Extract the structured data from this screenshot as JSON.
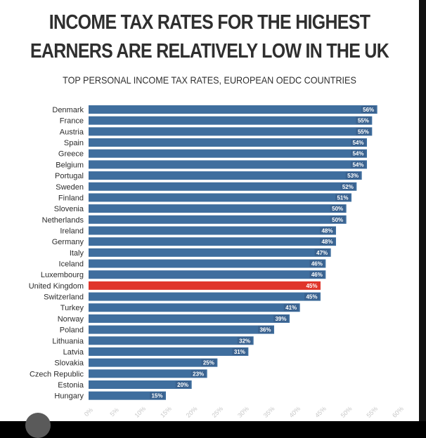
{
  "chart_data": {
    "type": "bar",
    "orientation": "horizontal",
    "title": "INCOME TAX RATES FOR THE HIGHEST EARNERS ARE RELATIVELY LOW IN THE UK",
    "subtitle": "TOP PERSONAL INCOME TAX RATES, EUROPEAN OEDC COUNTRIES",
    "categories": [
      "Denmark",
      "France",
      "Austria",
      "Spain",
      "Greece",
      "Belgium",
      "Portugal",
      "Sweden",
      "Finland",
      "Slovenia",
      "Netherlands",
      "Ireland",
      "Germany",
      "Italy",
      "Iceland",
      "Luxembourg",
      "United Kingdom",
      "Switzerland",
      "Turkey",
      "Norway",
      "Poland",
      "Lithuania",
      "Latvia",
      "Slovakia",
      "Czech Republic",
      "Estonia",
      "Hungary"
    ],
    "values": [
      56,
      55,
      55,
      54,
      54,
      54,
      53,
      52,
      51,
      50,
      50,
      48,
      48,
      47,
      46,
      46,
      45,
      45,
      41,
      39,
      36,
      32,
      31,
      25,
      23,
      20,
      15
    ],
    "value_labels": [
      "56%",
      "55%",
      "55%",
      "54%",
      "54%",
      "54%",
      "53%",
      "52%",
      "51%",
      "50%",
      "50%",
      "48%",
      "48%",
      "47%",
      "46%",
      "46%",
      "45%",
      "45%",
      "41%",
      "39%",
      "36%",
      "32%",
      "31%",
      "25%",
      "23%",
      "20%",
      "15%"
    ],
    "highlight": "United Kingdom",
    "xlim": [
      0,
      60
    ],
    "xticks": [
      "0%",
      "5%",
      "10%",
      "15%",
      "20%",
      "25%",
      "30%",
      "35%",
      "40%",
      "45%",
      "50%",
      "55%",
      "60%"
    ],
    "xlabel": "",
    "ylabel": "",
    "grid": false,
    "colors": {
      "bar": "#3f6e9e",
      "highlight": "#e0352b",
      "label_bg": "#3a628f",
      "label_text": "#ffffff",
      "axis_text": "#c8c8c8",
      "category_text": "#2b2b2b"
    }
  }
}
